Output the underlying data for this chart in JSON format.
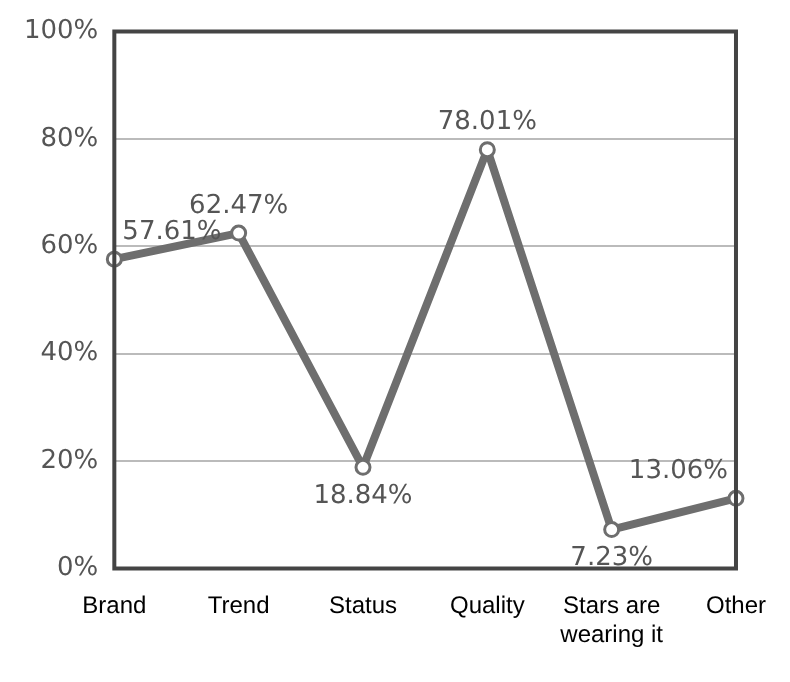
{
  "chart_data": {
    "type": "line",
    "categories": [
      "Brand",
      "Trend",
      "Status",
      "Quality",
      "Stars are wearing it",
      "Other"
    ],
    "series": [
      {
        "color": "#6e6e6e",
        "values": [
          57.61,
          62.47,
          18.84,
          78.01,
          7.23,
          13.06
        ],
        "value_labels": [
          "57.61%",
          "62.47%",
          "18.84%",
          "78.01%",
          "7.23%",
          "13.06%"
        ]
      }
    ],
    "ylim": [
      0,
      100
    ],
    "yticks": [
      {
        "value": 0,
        "label": "0%"
      },
      {
        "value": 20,
        "label": "20%"
      },
      {
        "value": 40,
        "label": "40%"
      },
      {
        "value": 60,
        "label": "60%"
      },
      {
        "value": 80,
        "label": "80%"
      },
      {
        "value": 100,
        "label": "100%"
      }
    ],
    "grid": "y",
    "legend": false,
    "marker": "circle",
    "line_style": "solid"
  }
}
